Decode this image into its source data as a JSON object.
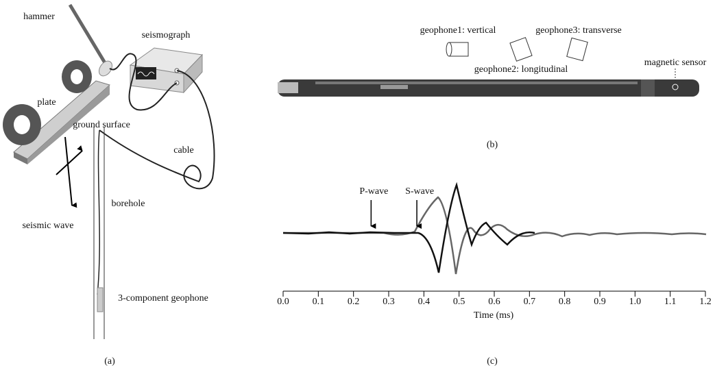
{
  "panel_a": {
    "label": "(a)",
    "hammer": "hammer",
    "seismograph": "seismograph",
    "plate": "plate",
    "ground_surface": "ground surface",
    "cable": "cable",
    "borehole": "borehole",
    "seismic_wave": "seismic wave",
    "geophone": "3-component geophone"
  },
  "panel_b": {
    "label": "(b)",
    "geophone1": "geophone1: vertical",
    "geophone2": "geophone2: longitudinal",
    "geophone3": "geophone3: transverse",
    "magnetic_sensor": "magnetic sensor"
  },
  "panel_c": {
    "label": "(c)",
    "x_label": "Time (ms)",
    "xlim": [
      0,
      1.2
    ],
    "xticks": [
      {
        "value": 0,
        "label": "0.0"
      },
      {
        "value": 0.1,
        "label": "0.1"
      },
      {
        "value": 0.2,
        "label": "0.2"
      },
      {
        "value": 0.3,
        "label": "0.3"
      },
      {
        "value": 0.4,
        "label": "0.4"
      },
      {
        "value": 0.5,
        "label": "0.5"
      },
      {
        "value": 0.6,
        "label": "0.6"
      },
      {
        "value": 0.7,
        "label": "0.7"
      },
      {
        "value": 0.8,
        "label": "0.8"
      },
      {
        "value": 0.9,
        "label": "0.9"
      },
      {
        "value": 1,
        "label": "1.0"
      },
      {
        "value": 1.1,
        "label": "1.1"
      },
      {
        "value": 1.2,
        "label": "1.2"
      }
    ],
    "annotations": [
      {
        "text": "P-wave",
        "x": 0.25
      },
      {
        "text": "S-wave",
        "x": 0.38
      }
    ]
  }
}
